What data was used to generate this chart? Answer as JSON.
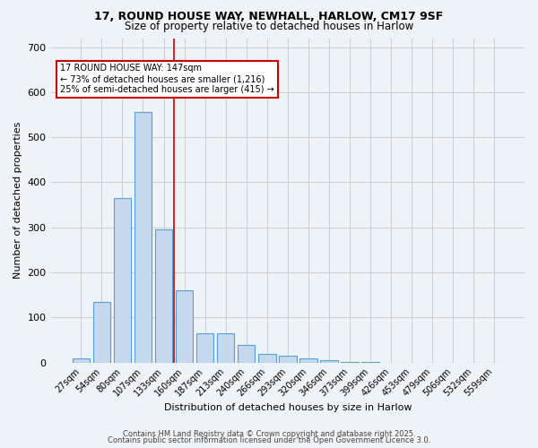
{
  "title1": "17, ROUND HOUSE WAY, NEWHALL, HARLOW, CM17 9SF",
  "title2": "Size of property relative to detached houses in Harlow",
  "xlabel": "Distribution of detached houses by size in Harlow",
  "ylabel": "Number of detached properties",
  "bar_labels": [
    "27sqm",
    "54sqm",
    "80sqm",
    "107sqm",
    "133sqm",
    "160sqm",
    "187sqm",
    "213sqm",
    "240sqm",
    "266sqm",
    "293sqm",
    "320sqm",
    "346sqm",
    "373sqm",
    "399sqm",
    "426sqm",
    "453sqm",
    "479sqm",
    "506sqm",
    "532sqm",
    "559sqm"
  ],
  "bar_values": [
    10,
    135,
    365,
    555,
    295,
    160,
    65,
    65,
    40,
    20,
    15,
    10,
    5,
    2,
    1,
    0,
    0,
    0,
    0,
    0,
    0
  ],
  "bar_color": "#c5d8ed",
  "bar_edgecolor": "#5a9fd4",
  "property_line_x": 4.5,
  "property_value": 147,
  "annotation_text": "17 ROUND HOUSE WAY: 147sqm\n← 73% of detached houses are smaller (1,216)\n25% of semi-detached houses are larger (415) →",
  "annotation_box_color": "#ffffff",
  "annotation_box_edgecolor": "#cc0000",
  "vline_color": "#cc0000",
  "grid_color": "#cccccc",
  "background_color": "#eef3f8",
  "footer1": "Contains HM Land Registry data © Crown copyright and database right 2025.",
  "footer2": "Contains public sector information licensed under the Open Government Licence 3.0.",
  "ylim": [
    0,
    720
  ],
  "yticks": [
    0,
    100,
    200,
    300,
    400,
    500,
    600,
    700
  ]
}
